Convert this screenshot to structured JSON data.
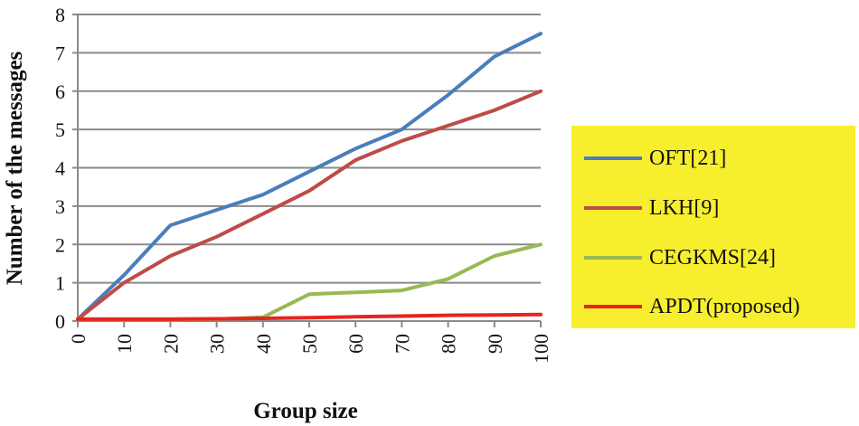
{
  "chart_data": {
    "type": "line",
    "title": "",
    "xlabel": "Group size",
    "ylabel": "Number of the messages",
    "categories": [
      "0",
      "10",
      "20",
      "30",
      "40",
      "50",
      "60",
      "70",
      "80",
      "90",
      "100"
    ],
    "x": [
      0,
      10,
      20,
      30,
      40,
      50,
      60,
      70,
      80,
      90,
      100
    ],
    "ylim": [
      0,
      8
    ],
    "yticks": [
      "0",
      "1",
      "2",
      "3",
      "4",
      "5",
      "6",
      "7",
      "8"
    ],
    "grid": true,
    "legend_position": "right",
    "series": [
      {
        "name": "OFT[21]",
        "color": "#4a7ebb",
        "values": [
          0.05,
          1.2,
          2.5,
          2.9,
          3.3,
          3.9,
          4.5,
          5.0,
          5.9,
          6.9,
          7.5
        ]
      },
      {
        "name": "LKH[9]",
        "color": "#be4b48",
        "values": [
          0.05,
          1.0,
          1.7,
          2.2,
          2.8,
          3.4,
          4.2,
          4.7,
          5.1,
          5.5,
          6.0
        ]
      },
      {
        "name": "CEGKMS[24]",
        "color": "#98b954",
        "values": [
          0.05,
          0.05,
          0.05,
          0.05,
          0.1,
          0.7,
          0.75,
          0.8,
          1.1,
          1.7,
          2.0
        ]
      },
      {
        "name": "APDT(proposed)",
        "color": "#e8231f",
        "values": [
          0.05,
          0.05,
          0.05,
          0.06,
          0.07,
          0.09,
          0.11,
          0.13,
          0.15,
          0.16,
          0.17
        ]
      }
    ]
  }
}
